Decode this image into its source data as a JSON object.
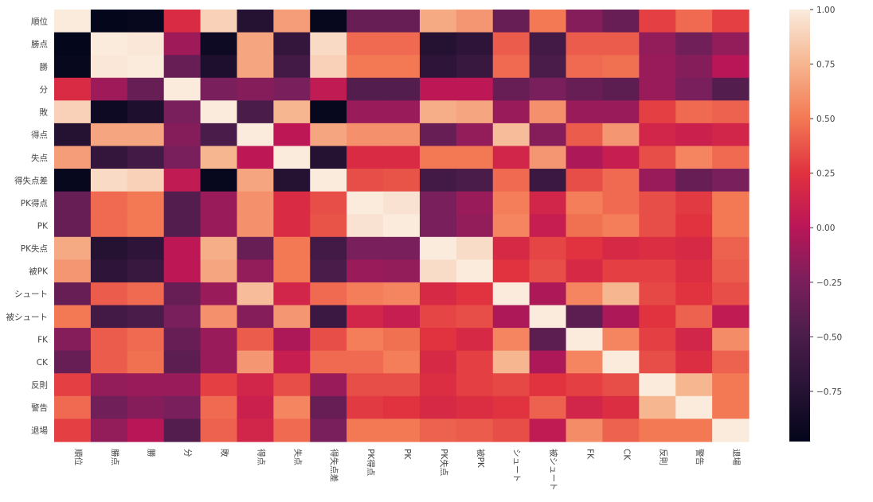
{
  "chart_data": {
    "type": "heatmap",
    "title": "",
    "colormap": "rocket",
    "vmin": -0.98,
    "vmax": 1.0,
    "labels": [
      "順位",
      "勝点",
      "勝",
      "分",
      "敗",
      "得点",
      "失点",
      "得失点差",
      "PK得点",
      "PK",
      "PK失点",
      "被PK",
      "シュート",
      "被シュート",
      "FK",
      "CK",
      "反則",
      "警告",
      "退場"
    ],
    "matrix": [
      [
        1,
        -0.97,
        -0.95,
        0.2,
        0.88,
        -0.75,
        0.65,
        -0.95,
        -0.35,
        -0.35,
        0.7,
        0.62,
        -0.35,
        0.5,
        -0.2,
        -0.35,
        0.3,
        0.45,
        0.3
      ],
      [
        -0.97,
        1,
        0.98,
        -0.1,
        -0.9,
        0.68,
        -0.65,
        0.92,
        0.45,
        0.45,
        -0.75,
        -0.7,
        0.4,
        -0.55,
        0.4,
        0.4,
        -0.15,
        -0.3,
        -0.15
      ],
      [
        -0.95,
        0.98,
        1,
        -0.35,
        -0.8,
        0.68,
        -0.55,
        0.88,
        0.5,
        0.5,
        -0.7,
        -0.62,
        0.45,
        -0.5,
        0.45,
        0.47,
        -0.12,
        -0.2,
        0.0
      ],
      [
        0.2,
        -0.1,
        -0.35,
        1,
        -0.25,
        -0.2,
        -0.25,
        0.05,
        -0.45,
        -0.45,
        0.02,
        0.02,
        -0.35,
        -0.25,
        -0.35,
        -0.4,
        -0.12,
        -0.25,
        -0.45
      ],
      [
        0.88,
        -0.9,
        -0.8,
        -0.25,
        1,
        -0.5,
        0.75,
        -0.95,
        -0.12,
        -0.12,
        0.72,
        0.68,
        -0.12,
        0.6,
        -0.12,
        -0.12,
        0.3,
        0.45,
        0.42
      ],
      [
        -0.75,
        0.68,
        0.68,
        -0.2,
        -0.5,
        1,
        0.02,
        0.68,
        0.6,
        0.6,
        -0.35,
        -0.15,
        0.78,
        -0.2,
        0.4,
        0.62,
        0.15,
        0.1,
        0.15
      ],
      [
        0.65,
        -0.65,
        -0.55,
        -0.25,
        0.75,
        0.02,
        1,
        -0.75,
        0.2,
        0.2,
        0.5,
        0.5,
        0.15,
        0.62,
        -0.05,
        0.08,
        0.35,
        0.55,
        0.45
      ],
      [
        -0.95,
        0.92,
        0.88,
        0.05,
        -0.95,
        0.68,
        -0.75,
        1,
        0.35,
        0.37,
        -0.55,
        -0.5,
        0.45,
        -0.6,
        0.35,
        0.45,
        -0.12,
        -0.35,
        -0.25
      ],
      [
        -0.35,
        0.45,
        0.5,
        -0.45,
        -0.12,
        0.6,
        0.2,
        0.35,
        1,
        0.96,
        -0.25,
        -0.12,
        0.52,
        0.15,
        0.52,
        0.45,
        0.35,
        0.28,
        0.5
      ],
      [
        -0.35,
        0.45,
        0.5,
        -0.45,
        -0.12,
        0.6,
        0.2,
        0.37,
        0.96,
        1,
        -0.25,
        -0.15,
        0.55,
        0.08,
        0.47,
        0.52,
        0.35,
        0.25,
        0.5
      ],
      [
        0.7,
        -0.75,
        -0.7,
        0.02,
        0.72,
        -0.35,
        0.5,
        -0.55,
        -0.25,
        -0.25,
        1,
        0.93,
        0.18,
        0.32,
        0.25,
        0.18,
        0.22,
        0.18,
        0.42
      ],
      [
        0.62,
        -0.7,
        -0.62,
        0.02,
        0.68,
        -0.15,
        0.5,
        -0.5,
        -0.12,
        -0.15,
        0.93,
        1,
        0.25,
        0.35,
        0.18,
        0.3,
        0.3,
        0.22,
        0.4
      ],
      [
        -0.35,
        0.4,
        0.45,
        -0.35,
        -0.12,
        0.78,
        0.15,
        0.45,
        0.52,
        0.55,
        0.18,
        0.25,
        1,
        -0.05,
        0.55,
        0.75,
        0.33,
        0.25,
        0.35
      ],
      [
        0.5,
        -0.55,
        -0.5,
        -0.25,
        0.6,
        -0.2,
        0.62,
        -0.6,
        0.15,
        0.08,
        0.32,
        0.35,
        -0.05,
        1,
        -0.4,
        -0.05,
        0.25,
        0.42,
        0.05
      ],
      [
        -0.2,
        0.4,
        0.45,
        -0.35,
        -0.12,
        0.4,
        -0.05,
        0.35,
        0.52,
        0.47,
        0.25,
        0.18,
        0.55,
        -0.4,
        1,
        0.55,
        0.3,
        0.15,
        0.58
      ],
      [
        -0.35,
        0.4,
        0.47,
        -0.4,
        -0.12,
        0.62,
        0.08,
        0.45,
        0.45,
        0.52,
        0.18,
        0.3,
        0.75,
        -0.05,
        0.55,
        1,
        0.35,
        0.22,
        0.42
      ],
      [
        0.3,
        -0.15,
        -0.12,
        -0.12,
        0.3,
        0.15,
        0.35,
        -0.12,
        0.35,
        0.35,
        0.22,
        0.3,
        0.33,
        0.25,
        0.3,
        0.35,
        1,
        0.75,
        0.5
      ],
      [
        0.45,
        -0.3,
        -0.2,
        -0.25,
        0.45,
        0.1,
        0.55,
        -0.35,
        0.28,
        0.25,
        0.18,
        0.22,
        0.25,
        0.42,
        0.15,
        0.22,
        0.75,
        1,
        0.5
      ],
      [
        0.3,
        -0.15,
        0.0,
        -0.45,
        0.42,
        0.15,
        0.45,
        -0.25,
        0.5,
        0.5,
        0.42,
        0.4,
        0.35,
        0.05,
        0.58,
        0.42,
        0.5,
        0.5,
        1
      ]
    ],
    "colorbar": {
      "ticks": [
        1.0,
        0.75,
        0.5,
        0.25,
        0.0,
        -0.25,
        -0.5,
        -0.75
      ],
      "tick_labels": [
        "1.00",
        "0.75",
        "0.50",
        "0.25",
        "0.00",
        "−0.25",
        "−0.50",
        "−0.75"
      ]
    },
    "grid": false,
    "legend": "right colorbar"
  }
}
